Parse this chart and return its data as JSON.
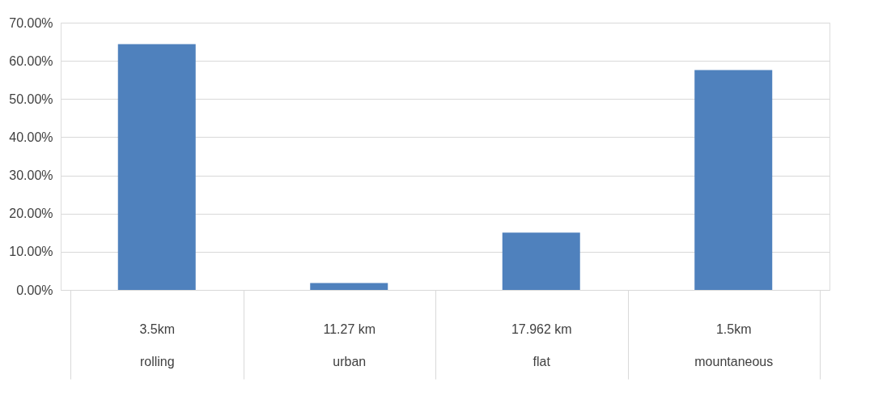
{
  "chart_data": {
    "type": "bar",
    "categories": [
      "3.5km\nrolling",
      "11.27 km\nurban",
      "17.962 km\nflat",
      "1.5km\nmountaneous"
    ],
    "values": [
      64.4,
      1.8,
      15.0,
      57.6
    ],
    "color": "#4f81bd",
    "ylim": [
      0,
      70
    ],
    "yticks": [
      {
        "value": 0,
        "label": "0.00%"
      },
      {
        "value": 10,
        "label": "10.00%"
      },
      {
        "value": 20,
        "label": "20.00%"
      },
      {
        "value": 30,
        "label": "30.00%"
      },
      {
        "value": 40,
        "label": "40.00%"
      },
      {
        "value": 50,
        "label": "50.00%"
      },
      {
        "value": 60,
        "label": "60.00%"
      },
      {
        "value": 70,
        "label": "70.00%"
      }
    ],
    "grid": "y"
  }
}
